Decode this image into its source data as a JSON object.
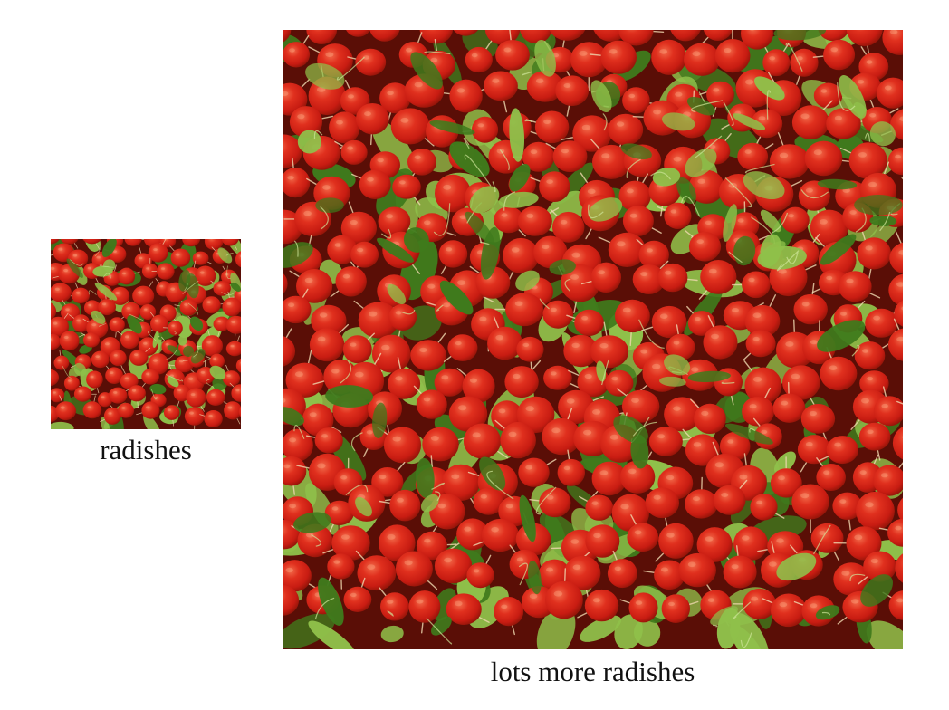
{
  "figure": {
    "small": {
      "caption": "radishes",
      "image_subject": "radish-texture-sample"
    },
    "large": {
      "caption": "lots more radishes",
      "image_subject": "radish-texture-synthesized"
    }
  },
  "colors": {
    "background": "#ffffff",
    "radish_dark": "#8e1408",
    "radish_mid": "#c81c12",
    "radish_bright": "#e0301e",
    "radish_highlight": "#f26b4a",
    "leaf_dark": "#3f7a1c",
    "leaf_light": "#8fc04a",
    "root_tip": "#f0d9b0",
    "caption_text": "#111111"
  }
}
